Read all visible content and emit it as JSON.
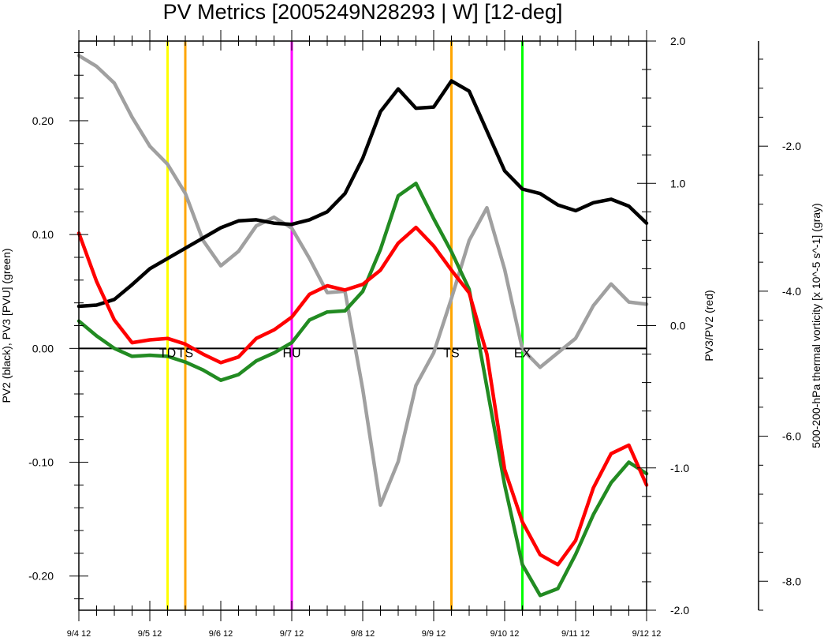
{
  "chart_data": {
    "type": "line",
    "title": "PV Metrics [2005249N28293 | W] [12-deg]",
    "x_unit": "6-hourly steps from 9/4 12",
    "x_range": [
      0,
      32
    ],
    "x_ticks": [
      {
        "x": 0,
        "label": "9/4 12"
      },
      {
        "x": 4,
        "label": "9/5 12"
      },
      {
        "x": 8,
        "label": "9/6 12"
      },
      {
        "x": 12,
        "label": "9/7 12"
      },
      {
        "x": 16,
        "label": "9/8 12"
      },
      {
        "x": 20,
        "label": "9/9 12"
      },
      {
        "x": 24,
        "label": "9/10 12"
      },
      {
        "x": 28,
        "label": "9/11 12"
      },
      {
        "x": 32,
        "label": "9/12 12"
      }
    ],
    "axes": {
      "left": {
        "label": "PV2 (black), PV3 [PVU] (green)",
        "range": [
          -0.23,
          0.27
        ],
        "ticks": [
          -0.2,
          -0.1,
          0.0,
          0.1,
          0.2
        ],
        "tick_labels": [
          "-0.20",
          "-0.10",
          "0.00",
          "0.10",
          "0.20"
        ]
      },
      "right": {
        "label": "PV3/PV2 (red)",
        "range": [
          -2.0,
          2.0
        ],
        "ticks": [
          -2.0,
          -1.0,
          0.0,
          1.0,
          2.0
        ],
        "tick_labels": [
          "-2.0",
          "-1.0",
          "0.0",
          "1.0",
          "2.0"
        ]
      },
      "far_right": {
        "label": "500-200-hPa thermal vorticity [x 10^-5 s^-1] (gray)",
        "range": [
          -8.4,
          -0.55
        ],
        "ticks": [
          -8.0,
          -6.0,
          -4.0,
          -2.0
        ],
        "tick_labels": [
          "-8.0",
          "-6.0",
          "-4.0",
          "-2.0"
        ]
      }
    },
    "zero_line": 0,
    "events": [
      {
        "x": 5.0,
        "label": "TD",
        "color": "#ffff00"
      },
      {
        "x": 6.0,
        "label": "TS",
        "color": "#ffa500"
      },
      {
        "x": 12.0,
        "label": "HU",
        "color": "#ff00ff"
      },
      {
        "x": 21.0,
        "label": "TS",
        "color": "#ffa500"
      },
      {
        "x": 25.0,
        "label": "EX",
        "color": "#00ff00"
      }
    ],
    "series": [
      {
        "name": "PV2",
        "axis": "left",
        "color": "#000000",
        "values": [
          0.037,
          0.038,
          0.043,
          0.056,
          0.07,
          0.079,
          0.088,
          0.097,
          0.106,
          0.112,
          0.113,
          0.11,
          0.109,
          0.113,
          0.12,
          0.136,
          0.167,
          0.208,
          0.228,
          0.211,
          0.212,
          0.235,
          0.226,
          0.191,
          0.156,
          0.14,
          0.136,
          0.126,
          0.121,
          0.128,
          0.131,
          0.125,
          0.11
        ]
      },
      {
        "name": "PV3",
        "axis": "left",
        "color": "#228b22",
        "values": [
          0.024,
          0.011,
          0.0,
          -0.007,
          -0.006,
          -0.007,
          -0.012,
          -0.019,
          -0.028,
          -0.023,
          -0.011,
          -0.004,
          0.005,
          0.025,
          0.032,
          0.033,
          0.05,
          0.087,
          0.134,
          0.145,
          0.114,
          0.085,
          0.052,
          -0.034,
          -0.12,
          -0.19,
          -0.217,
          -0.211,
          -0.181,
          -0.146,
          -0.118,
          -0.1,
          -0.11
        ]
      },
      {
        "name": "PV3/PV2",
        "axis": "right",
        "color": "#ff0000",
        "values": [
          0.65,
          0.31,
          0.04,
          -0.12,
          -0.1,
          -0.09,
          -0.13,
          -0.2,
          -0.26,
          -0.22,
          -0.09,
          -0.03,
          0.06,
          0.22,
          0.28,
          0.25,
          0.29,
          0.39,
          0.58,
          0.69,
          0.56,
          0.39,
          0.23,
          -0.2,
          -1.01,
          -1.38,
          -1.61,
          -1.68,
          -1.51,
          -1.14,
          -0.9,
          -0.84,
          -1.12
        ]
      },
      {
        "name": "thermal vorticity",
        "axis": "far_right",
        "color": "#a0a0a0",
        "values": [
          -0.75,
          -0.9,
          -1.13,
          -1.6,
          -2.0,
          -2.25,
          -2.65,
          -3.3,
          -3.65,
          -3.45,
          -3.1,
          -2.98,
          -3.13,
          -3.55,
          -4.02,
          -4.0,
          -5.35,
          -6.95,
          -6.35,
          -5.3,
          -4.85,
          -4.1,
          -3.3,
          -2.85,
          -3.7,
          -4.8,
          -5.05,
          -4.85,
          -4.65,
          -4.2,
          -3.9,
          -4.15,
          -4.18
        ]
      }
    ]
  }
}
